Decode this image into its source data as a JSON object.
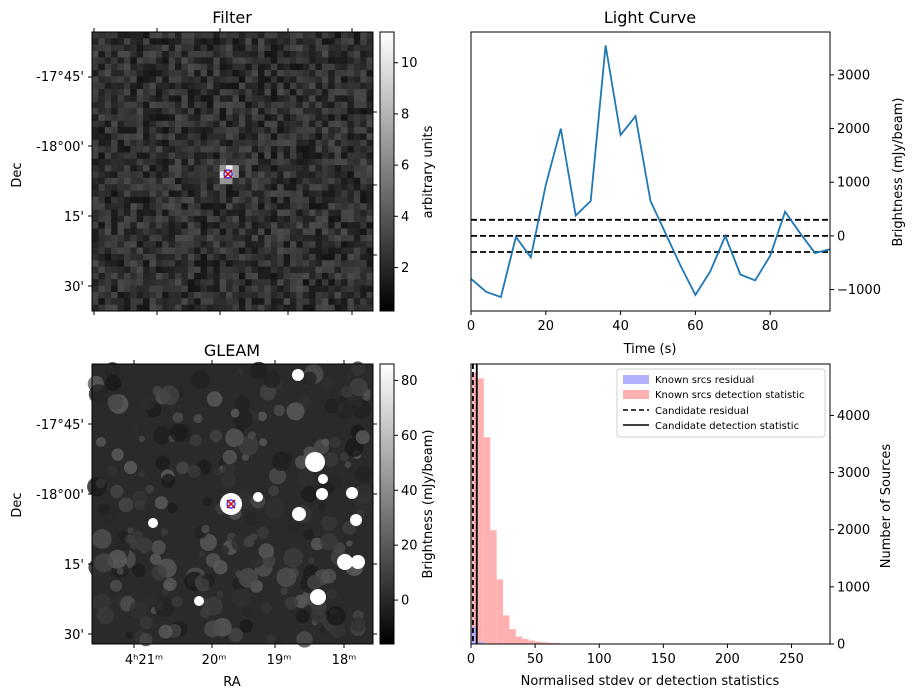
{
  "figure": {
    "filter_title": "Filter",
    "gleam_title": "GLEAM",
    "lightcurve_title": "Light Curve"
  },
  "filter": {
    "ylabel": "Dec",
    "yticks": [
      "-17°45'",
      "-18°00'",
      "15'",
      "30'"
    ],
    "colorbar_label": "arbitrary units",
    "colorbar_ticks": [
      "2",
      "4",
      "6",
      "8",
      "10"
    ],
    "colorbar_range": [
      0.3,
      11.2
    ]
  },
  "gleam": {
    "ylabel": "Dec",
    "xlabel": "RA",
    "yticks": [
      "-17°45'",
      "-18°00'",
      "15'",
      "30'"
    ],
    "xticks": [
      "4ʰ21ᵐ",
      "20ᵐ",
      "19ᵐ",
      "18ᵐ"
    ],
    "colorbar_label": "Brightness (mJy/beam)",
    "colorbar_ticks": [
      "0",
      "20",
      "40",
      "60",
      "80"
    ],
    "colorbar_range": [
      -16,
      86
    ]
  },
  "chart_data": [
    {
      "type": "line",
      "title": "Light Curve",
      "xlabel": "Time (s)",
      "ylabel": "Brightness (mJy/beam)",
      "xlim": [
        0,
        96
      ],
      "ylim": [
        -1400,
        3800
      ],
      "xticks": [
        0,
        20,
        40,
        60,
        80
      ],
      "yticks": [
        -1000,
        0,
        1000,
        2000,
        3000
      ],
      "yaxis_side": "right",
      "x": [
        0,
        4,
        8,
        12,
        16,
        20,
        24,
        28,
        32,
        36,
        40,
        44,
        48,
        52,
        56,
        60,
        64,
        68,
        72,
        76,
        80,
        84,
        88,
        92,
        96
      ],
      "series": [
        {
          "values": [
            -800,
            -1040,
            -1140,
            -20,
            -400,
            950,
            2000,
            380,
            650,
            3550,
            1880,
            2230,
            650,
            50,
            -550,
            -1100,
            -660,
            0,
            -720,
            -830,
            -370,
            450,
            50,
            -320,
            -250
          ],
          "color": "#1f77b4"
        }
      ],
      "hlines": [
        300,
        0,
        -300
      ],
      "hline_style": "dashed"
    },
    {
      "type": "bar",
      "title": "",
      "xlabel": "Normalised stdev or detection statistics",
      "ylabel": "Number of Sources",
      "xlim": [
        0,
        280
      ],
      "ylim": [
        0,
        4900
      ],
      "xticks": [
        0,
        50,
        100,
        150,
        200,
        250
      ],
      "yticks": [
        0,
        1000,
        2000,
        3000,
        4000
      ],
      "yaxis_side": "right",
      "bin_width": 5,
      "legend_position": "top-right",
      "series": [
        {
          "name": "Known srcs residual",
          "color": "#b0b0ff",
          "bin_starts": [
            0,
            5
          ],
          "values": [
            300,
            40
          ]
        },
        {
          "name": "Known srcs detection statistic",
          "color": "#ffb0b0",
          "bin_starts": [
            0,
            5,
            10,
            15,
            20,
            25,
            30,
            35,
            40,
            45,
            50,
            55,
            60,
            65,
            70,
            75,
            80,
            85,
            90,
            95,
            100,
            105,
            110,
            115,
            120,
            125,
            130,
            135,
            140,
            145,
            150,
            155,
            160,
            165,
            170,
            235,
            240,
            260,
            265,
            270
          ],
          "values": [
            4750,
            4650,
            3620,
            1990,
            1130,
            500,
            260,
            130,
            90,
            60,
            40,
            30,
            20,
            15,
            10,
            8,
            6,
            6,
            5,
            5,
            4,
            4,
            3,
            3,
            3,
            2,
            2,
            2,
            2,
            2,
            2,
            2,
            2,
            2,
            1,
            2,
            2,
            1,
            2,
            1
          ]
        }
      ],
      "vlines": [
        {
          "name": "Candidate residual",
          "x": 1.5,
          "style": "dashed"
        },
        {
          "name": "Candidate detection statistic",
          "x": 4.5,
          "style": "solid"
        }
      ]
    }
  ]
}
